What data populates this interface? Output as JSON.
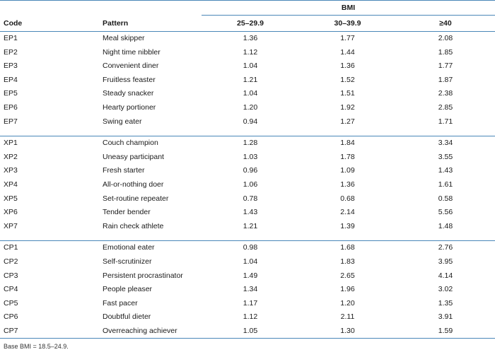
{
  "table": {
    "group_header": "BMI",
    "columns": [
      "Code",
      "Pattern",
      "25–29.9",
      "30–39.9",
      "≥40"
    ],
    "groups": [
      {
        "rows": [
          {
            "code": "EP1",
            "pattern": "Meal skipper",
            "b1": "1.36",
            "b2": "1.77",
            "b3": "2.08"
          },
          {
            "code": "EP2",
            "pattern": "Night time nibbler",
            "b1": "1.12",
            "b2": "1.44",
            "b3": "1.85"
          },
          {
            "code": "EP3",
            "pattern": "Convenient diner",
            "b1": "1.04",
            "b2": "1.36",
            "b3": "1.77"
          },
          {
            "code": "EP4",
            "pattern": "Fruitless feaster",
            "b1": "1.21",
            "b2": "1.52",
            "b3": "1.87"
          },
          {
            "code": "EP5",
            "pattern": "Steady snacker",
            "b1": "1.04",
            "b2": "1.51",
            "b3": "2.38"
          },
          {
            "code": "EP6",
            "pattern": "Hearty portioner",
            "b1": "1.20",
            "b2": "1.92",
            "b3": "2.85"
          },
          {
            "code": "EP7",
            "pattern": "Swing eater",
            "b1": "0.94",
            "b2": "1.27",
            "b3": "1.71"
          }
        ]
      },
      {
        "rows": [
          {
            "code": "XP1",
            "pattern": "Couch champion",
            "b1": "1.28",
            "b2": "1.84",
            "b3": "3.34"
          },
          {
            "code": "XP2",
            "pattern": "Uneasy participant",
            "b1": "1.03",
            "b2": "1.78",
            "b3": "3.55"
          },
          {
            "code": "XP3",
            "pattern": "Fresh starter",
            "b1": "0.96",
            "b2": "1.09",
            "b3": "1.43"
          },
          {
            "code": "XP4",
            "pattern": "All-or-nothing doer",
            "b1": "1.06",
            "b2": "1.36",
            "b3": "1.61"
          },
          {
            "code": "XP5",
            "pattern": "Set-routine repeater",
            "b1": "0.78",
            "b2": "0.68",
            "b3": "0.58"
          },
          {
            "code": "XP6",
            "pattern": "Tender bender",
            "b1": "1.43",
            "b2": "2.14",
            "b3": "5.56"
          },
          {
            "code": "XP7",
            "pattern": "Rain check athlete",
            "b1": "1.21",
            "b2": "1.39",
            "b3": "1.48"
          }
        ]
      },
      {
        "rows": [
          {
            "code": "CP1",
            "pattern": "Emotional eater",
            "b1": "0.98",
            "b2": "1.68",
            "b3": "2.76"
          },
          {
            "code": "CP2",
            "pattern": "Self-scrutinizer",
            "b1": "1.04",
            "b2": "1.83",
            "b3": "3.95"
          },
          {
            "code": "CP3",
            "pattern": "Persistent procrastinator",
            "b1": "1.49",
            "b2": "2.65",
            "b3": "4.14"
          },
          {
            "code": "CP4",
            "pattern": "People pleaser",
            "b1": "1.34",
            "b2": "1.96",
            "b3": "3.02"
          },
          {
            "code": "CP5",
            "pattern": "Fast pacer",
            "b1": "1.17",
            "b2": "1.20",
            "b3": "1.35"
          },
          {
            "code": "CP6",
            "pattern": "Doubtful dieter",
            "b1": "1.12",
            "b2": "2.11",
            "b3": "3.91"
          },
          {
            "code": "CP7",
            "pattern": "Overreaching achiever",
            "b1": "1.05",
            "b2": "1.30",
            "b3": "1.59"
          }
        ]
      }
    ],
    "footnote": "Base BMI = 18.5–24.9."
  },
  "colors": {
    "rule": "#4a87b8",
    "text": "#1a1a1a"
  }
}
